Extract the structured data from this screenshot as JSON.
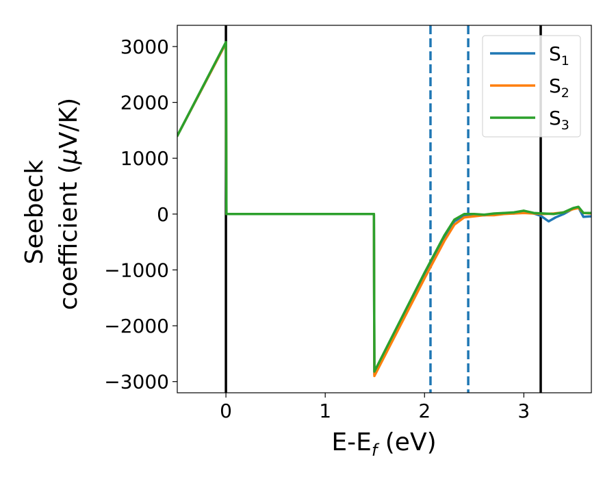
{
  "chart_data": {
    "type": "line",
    "xlabel": "E-E",
    "xlabel_sub": "f",
    "xlabel_unit": " (eV)",
    "ylabel_line1": "Seebeck",
    "ylabel_line2_prefix": "coefficient  (",
    "ylabel_mu": "μ",
    "ylabel_line2_suffix": "V/K)",
    "xlim": [
      -0.49,
      3.68
    ],
    "ylim": [
      -3200,
      3380
    ],
    "xticks": [
      0,
      1,
      2,
      3
    ],
    "yticks": [
      3000,
      2000,
      1000,
      0,
      -1000,
      -2000,
      -3000
    ],
    "ytick_labels": [
      "3000",
      "2000",
      "1000",
      "0",
      "−1000",
      "−2000",
      "−3000"
    ],
    "xtick_labels": [
      "0",
      "1",
      "2",
      "3"
    ],
    "vlines": [
      {
        "x": 0.0,
        "style": "solid",
        "color": "#000000"
      },
      {
        "x": 2.06,
        "style": "dashed",
        "color": "#1f77b4"
      },
      {
        "x": 2.44,
        "style": "dashed",
        "color": "#1f77b4"
      },
      {
        "x": 3.17,
        "style": "solid",
        "color": "#000000"
      }
    ],
    "legend_position": "top-right",
    "grid": false,
    "series": [
      {
        "name": "S",
        "sub": "1",
        "color": "#1f77b4",
        "x": [
          -0.49,
          0.0,
          0.005,
          1.49,
          1.495,
          2.0,
          2.2,
          2.3,
          2.4,
          2.5,
          2.6,
          2.7,
          2.8,
          2.9,
          3.0,
          3.1,
          3.17,
          3.25,
          3.32,
          3.4,
          3.5,
          3.55,
          3.6,
          3.68
        ],
        "y": [
          1400,
          3060,
          0,
          0,
          -2870,
          -1100,
          -420,
          -130,
          -20,
          -10,
          -20,
          -10,
          20,
          10,
          40,
          10,
          -30,
          -130,
          -60,
          0,
          100,
          120,
          -50,
          -40
        ]
      },
      {
        "name": "S",
        "sub": "2",
        "color": "#ff7f0e",
        "x": [
          -0.49,
          0.0,
          0.005,
          1.49,
          1.495,
          2.0,
          2.2,
          2.3,
          2.4,
          2.5,
          2.6,
          2.7,
          2.8,
          2.9,
          3.0,
          3.1,
          3.2,
          3.3,
          3.4,
          3.5,
          3.55,
          3.6,
          3.68
        ],
        "y": [
          1400,
          3060,
          0,
          0,
          -2900,
          -1150,
          -480,
          -190,
          -60,
          -40,
          -20,
          -20,
          0,
          10,
          20,
          10,
          0,
          10,
          30,
          90,
          110,
          20,
          10
        ]
      },
      {
        "name": "S",
        "sub": "3",
        "color": "#2ca02c",
        "x": [
          -0.49,
          0.0,
          0.005,
          1.49,
          1.495,
          2.0,
          2.2,
          2.3,
          2.4,
          2.5,
          2.6,
          2.7,
          2.8,
          2.9,
          3.0,
          3.1,
          3.2,
          3.3,
          3.4,
          3.5,
          3.55,
          3.6,
          3.68
        ],
        "y": [
          1400,
          3080,
          0,
          0,
          -2820,
          -1050,
          -380,
          -100,
          0,
          0,
          -10,
          10,
          20,
          30,
          60,
          20,
          10,
          0,
          30,
          110,
          130,
          20,
          20
        ]
      }
    ]
  }
}
